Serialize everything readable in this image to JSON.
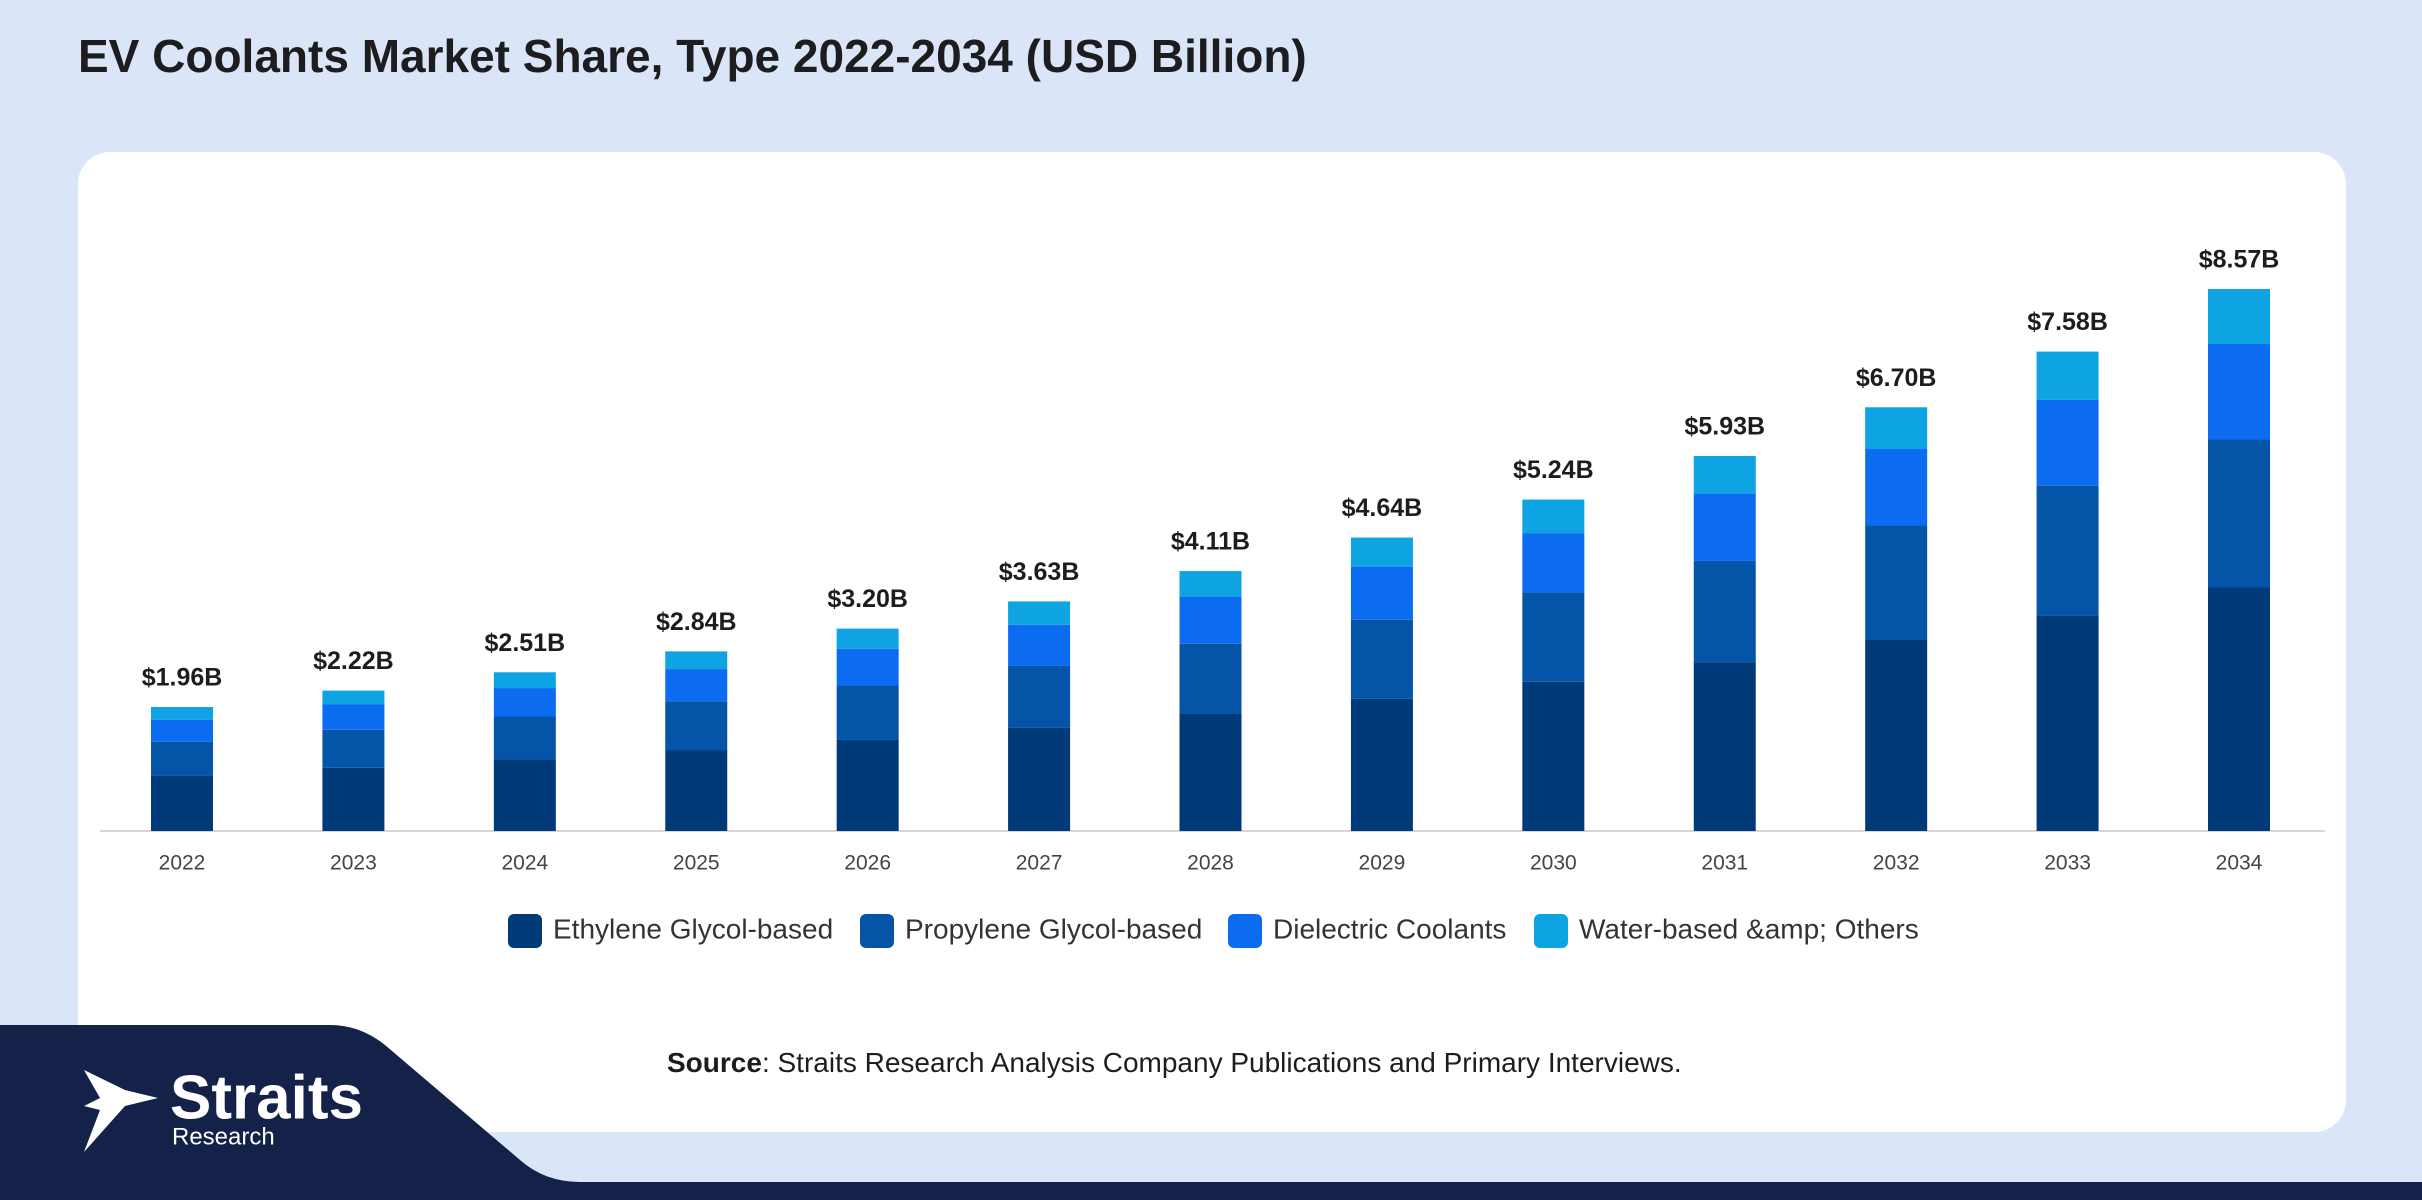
{
  "chart_data": {
    "type": "stacked_bar",
    "title": "EV Coolants Market Share, Type 2022-2034 (USD Billion)",
    "categories": [
      "2022",
      "2023",
      "2024",
      "2025",
      "2026",
      "2027",
      "2028",
      "2029",
      "2030",
      "2031",
      "2032",
      "2033",
      "2034"
    ],
    "series": [
      {
        "name": "Ethylene Glycol-based",
        "color": "#003a78",
        "values": [
          0.88,
          1.0,
          1.13,
          1.28,
          1.44,
          1.63,
          1.85,
          2.09,
          2.36,
          2.67,
          3.02,
          3.41,
          3.85
        ]
      },
      {
        "name": "Propylene Glycol-based",
        "color": "#0455a8",
        "values": [
          0.53,
          0.6,
          0.68,
          0.77,
          0.86,
          0.98,
          1.11,
          1.25,
          1.41,
          1.6,
          1.81,
          2.05,
          2.34
        ]
      },
      {
        "name": "Dielectric Coolants",
        "color": "#0b6cf0",
        "values": [
          0.35,
          0.4,
          0.45,
          0.51,
          0.58,
          0.65,
          0.74,
          0.84,
          0.94,
          1.07,
          1.21,
          1.36,
          1.51
        ]
      },
      {
        "name": "Water-based &amp; Others",
        "color": "#0ea3e3",
        "values": [
          0.2,
          0.22,
          0.25,
          0.28,
          0.32,
          0.37,
          0.41,
          0.46,
          0.53,
          0.59,
          0.66,
          0.76,
          0.87
        ]
      }
    ],
    "totals": {
      "values": [
        1.96,
        2.22,
        2.51,
        2.84,
        3.2,
        3.63,
        4.11,
        4.64,
        5.24,
        5.93,
        6.7,
        7.58,
        8.57
      ],
      "value_labels": [
        "$1.96B",
        "$2.22B",
        "$2.51B",
        "$2.84B",
        "$3.20B",
        "$3.63B",
        "$4.11B",
        "$4.64B",
        "$5.24B",
        "$5.93B",
        "$6.70B",
        "$7.58B",
        "$8.57B"
      ]
    },
    "legend": "bottom"
  },
  "source": {
    "label": "Source",
    "text": ": Straits Research Analysis Company Publications and Primary Interviews."
  },
  "logo": {
    "name": "Straits",
    "tagline": "Research"
  }
}
